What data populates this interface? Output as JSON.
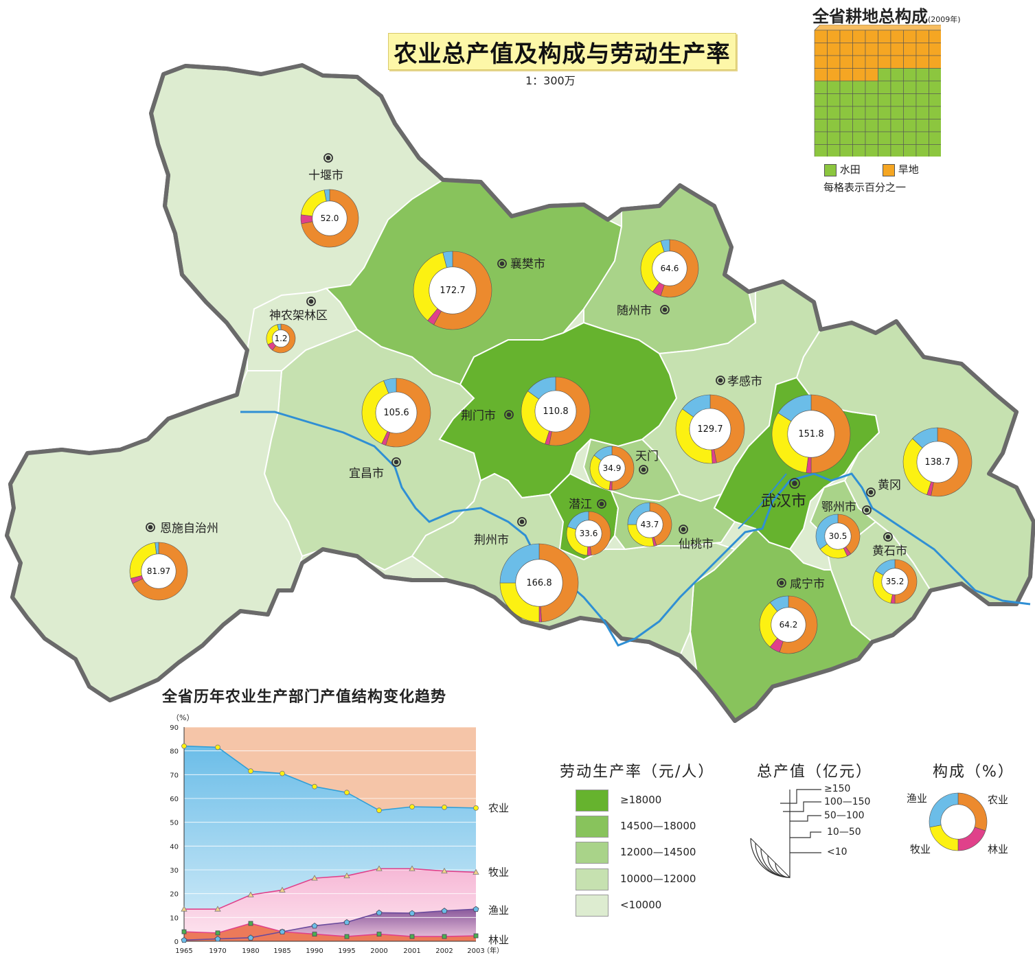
{
  "title": "农业总产值及构成与劳动生产率",
  "scale": "1：300万",
  "colors": {
    "agriculture": "#ec8a2e",
    "forestry": "#e0418a",
    "livestock": "#fcf112",
    "fishery": "#6bbde8",
    "river": "#2f8fd4",
    "border": "#6a6a6a",
    "class_colors": [
      "#66b32e",
      "#88c35c",
      "#a9d389",
      "#c6e1b0",
      "#ddecd0"
    ],
    "paddy": "#8cc63f",
    "dryland": "#f5a623"
  },
  "farmland": {
    "title": "全省耕地总构成",
    "year": "(2009年)",
    "paddy_percent": 65,
    "dryland_percent": 35,
    "paddy_label": "水田",
    "dryland_label": "旱地",
    "note": "每格表示百分之一"
  },
  "cities": [
    {
      "name": "十堰市",
      "value": "52.0",
      "agri": 72,
      "forest": 5,
      "livestock": 20,
      "fishery": 3,
      "productivity_class": 4
    },
    {
      "name": "襄樊市",
      "value": "172.7",
      "agri": 58,
      "forest": 3,
      "livestock": 35,
      "fishery": 4,
      "productivity_class": 1
    },
    {
      "name": "随州市",
      "value": "64.6",
      "agri": 55,
      "forest": 5,
      "livestock": 35,
      "fishery": 5,
      "productivity_class": 2
    },
    {
      "name": "神农架林区",
      "value": "1.2",
      "agri": 60,
      "forest": 8,
      "livestock": 28,
      "fishery": 4,
      "productivity_class": 4
    },
    {
      "name": "宜昌市",
      "value": "105.6",
      "agri": 55,
      "forest": 2,
      "livestock": 37,
      "fishery": 6,
      "productivity_class": 3
    },
    {
      "name": "荆门市",
      "value": "110.8",
      "agri": 53,
      "forest": 2,
      "livestock": 30,
      "fishery": 15,
      "productivity_class": 0
    },
    {
      "name": "孝感市",
      "value": "129.7",
      "agri": 47,
      "forest": 2,
      "livestock": 36,
      "fishery": 15,
      "productivity_class": 3
    },
    {
      "name": "武汉市",
      "value": "151.8",
      "agri": 50,
      "forest": 2,
      "livestock": 32,
      "fishery": 16,
      "productivity_class": 0
    },
    {
      "name": "黄冈",
      "value": "138.7",
      "agri": 53,
      "forest": 2,
      "livestock": 32,
      "fishery": 13,
      "productivity_class": 3
    },
    {
      "name": "天门",
      "value": "34.9",
      "agri": 50,
      "forest": 2,
      "livestock": 33,
      "fishery": 15,
      "productivity_class": 2
    },
    {
      "name": "潜江",
      "value": "33.6",
      "agri": 48,
      "forest": 3,
      "livestock": 29,
      "fishery": 20,
      "productivity_class": 0
    },
    {
      "name": "仙桃市",
      "value": "43.7",
      "agri": 45,
      "forest": 2,
      "livestock": 28,
      "fishery": 25,
      "productivity_class": 2
    },
    {
      "name": "鄂州市",
      "value": "30.5",
      "agri": 40,
      "forest": 3,
      "livestock": 22,
      "fishery": 35,
      "productivity_class": 2
    },
    {
      "name": "黄石市",
      "value": "35.2",
      "agri": 50,
      "forest": 3,
      "livestock": 30,
      "fishery": 17,
      "productivity_class": 4
    },
    {
      "name": "恩施自治州",
      "value": "81.97",
      "agri": 68,
      "forest": 3,
      "livestock": 27,
      "fishery": 2,
      "productivity_class": 4
    },
    {
      "name": "荆州市",
      "value": "166.8",
      "agri": 49,
      "forest": 1,
      "livestock": 25,
      "fishery": 25,
      "productivity_class": 3
    },
    {
      "name": "咸宁市",
      "value": "64.2",
      "agri": 55,
      "forest": 6,
      "livestock": 28,
      "fishery": 11,
      "productivity_class": 1
    }
  ],
  "legend_productivity": {
    "title": "劳动生产率（元/人）",
    "classes": [
      "≥18000",
      "14500—18000",
      "12000—14500",
      "10000—12000",
      "<10000"
    ]
  },
  "legend_total": {
    "title": "总产值（亿元）",
    "classes": [
      "≥150",
      "100—150",
      "50—100",
      "10—50",
      "<10"
    ]
  },
  "legend_composition": {
    "title": "构成（%）",
    "agri": "农业",
    "forest": "林业",
    "livestock": "牧业",
    "fishery": "渔业"
  },
  "chart_data": {
    "type": "area",
    "title": "全省历年农业生产部门产值结构变化趋势",
    "ylabel": "（%）",
    "xlabel": "（年）",
    "ylim": [
      0,
      90
    ],
    "y_ticks": [
      0,
      10,
      20,
      30,
      40,
      50,
      60,
      70,
      80,
      90
    ],
    "x": [
      "1965",
      "1970",
      "1980",
      "1985",
      "1990",
      "1995",
      "2000",
      "2001",
      "2002",
      "2003"
    ],
    "series": [
      {
        "name": "农业",
        "values": [
          82,
          81.5,
          71.5,
          70.5,
          65,
          62.5,
          55,
          56.5,
          56.3,
          56
        ]
      },
      {
        "name": "牧业",
        "values": [
          13.5,
          13.5,
          19.5,
          21.5,
          26.5,
          27.5,
          30.5,
          30.5,
          29.5,
          29
        ]
      },
      {
        "name": "渔业",
        "values": [
          0.5,
          1,
          1.5,
          4,
          6.5,
          8,
          12,
          11.8,
          12.8,
          13.5
        ]
      },
      {
        "name": "林业",
        "values": [
          4,
          3.5,
          7.5,
          4,
          3,
          2,
          3,
          2,
          2,
          2.3
        ]
      }
    ]
  }
}
